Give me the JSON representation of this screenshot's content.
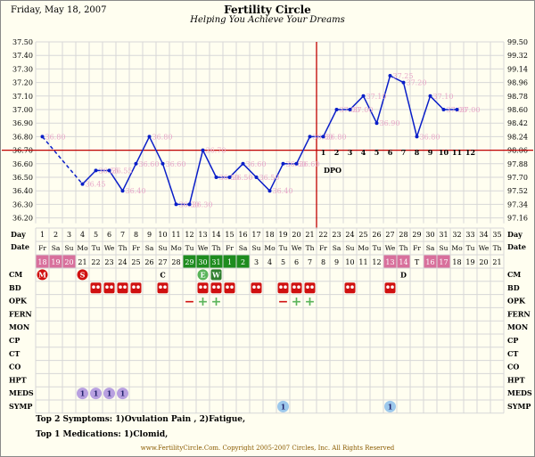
{
  "header": {
    "date": "Friday, May 18, 2007",
    "title": "Fertility Circle",
    "subtitle": "Helping You Achieve Your Dreams"
  },
  "chart_data": {
    "type": "line",
    "ylim_c": [
      36.1,
      37.5
    ],
    "y_ticks_c": [
      "37.50",
      "37.40",
      "37.30",
      "37.20",
      "37.10",
      "37.00",
      "36.90",
      "36.80",
      "36.70",
      "36.60",
      "36.50",
      "36.40",
      "36.30",
      "36.20"
    ],
    "y_ticks_f": [
      "99.50",
      "99.32",
      "99.14",
      "98.96",
      "98.78",
      "98.60",
      "98.42",
      "98.24",
      "98.06",
      "97.88",
      "97.70",
      "97.52",
      "97.34",
      "97.16"
    ],
    "days": [
      1,
      2,
      3,
      4,
      5,
      6,
      7,
      8,
      9,
      10,
      11,
      12,
      13,
      14,
      15,
      16,
      17,
      18,
      19,
      20,
      21,
      22,
      23,
      24,
      25,
      26,
      27,
      28,
      29,
      30,
      31,
      32,
      33,
      34,
      35
    ],
    "temps": [
      36.8,
      null,
      null,
      36.45,
      36.55,
      36.55,
      36.4,
      36.6,
      36.8,
      36.6,
      36.3,
      36.3,
      36.7,
      36.5,
      36.5,
      36.6,
      36.5,
      36.4,
      36.6,
      36.6,
      36.8,
      36.8,
      37.0,
      37.0,
      37.1,
      36.9,
      37.25,
      37.2,
      36.8,
      37.1,
      37.0,
      37.0,
      null,
      null,
      null
    ],
    "temp_labels": [
      "36.80",
      "36.45",
      "36.55",
      "36.55",
      "36.40",
      "36.60",
      "36.80",
      "36.60",
      "36.30",
      "36.30",
      "36.70",
      "36.50",
      "36.50",
      "36.60",
      "36.50",
      "36.40",
      "36.60",
      "36.60",
      "36.80",
      "36.80",
      "37.00",
      "37.00",
      "37.10",
      "36.90",
      "37.25",
      "37.20",
      "36.80",
      "37.10",
      "37.00",
      "37.00"
    ],
    "coverline_c": 36.7,
    "ovulation_day": 21,
    "dpo_label": "DPO",
    "dpo": [
      "1",
      "2",
      "3",
      "4",
      "5",
      "6",
      "7",
      "8",
      "9",
      "10",
      "11",
      "12"
    ],
    "colors": {
      "line": "#0a1ec8",
      "coverline": "#c00000",
      "grid": "#d7d7d7",
      "label": "#e8a8c8",
      "pink": "#d8709c",
      "green": "#1e8c1e",
      "opk": "#5ab45a",
      "red": "#d01010"
    }
  },
  "rows": {
    "day_label": "Day",
    "date_label": "Date",
    "weekdays": [
      "Fr",
      "Sa",
      "Su",
      "Mo",
      "Tu",
      "We",
      "Th",
      "Fr",
      "Sa",
      "Su",
      "Mo",
      "Tu",
      "We",
      "Th",
      "Fr",
      "Sa",
      "Su",
      "Mo",
      "Tu",
      "We",
      "Th",
      "Fr",
      "Sa",
      "Su",
      "Mo",
      "Tu",
      "We",
      "Th",
      "Fr",
      "Sa",
      "Su",
      "Mo",
      "Tu",
      "We",
      "Th"
    ],
    "dates": [
      "18",
      "19",
      "20",
      "21",
      "22",
      "23",
      "24",
      "25",
      "26",
      "27",
      "28",
      "29",
      "30",
      "31",
      "1",
      "2",
      "3",
      "4",
      "5",
      "6",
      "7",
      "8",
      "9",
      "10",
      "11",
      "12",
      "13",
      "14",
      "T",
      "16",
      "17",
      "18",
      "19",
      "20",
      "21"
    ],
    "date_style": [
      "p",
      "p",
      "p",
      "",
      "",
      "",
      "",
      "",
      "",
      "",
      "",
      "g",
      "g",
      "g",
      "g",
      "g",
      "",
      "",
      "",
      "",
      "",
      "",
      "",
      "",
      "",
      "",
      "p",
      "p",
      "",
      "p",
      "p",
      "",
      "",
      "",
      ""
    ],
    "labels": [
      "CM",
      "BD",
      "OPK",
      "FERN",
      "MON",
      "CP",
      "CT",
      "CO",
      "HPT",
      "MEDS",
      "SYMP"
    ],
    "cm_marks": [
      {
        "day": 1,
        "text": "M",
        "kind": "red"
      },
      {
        "day": 4,
        "text": "S",
        "kind": "red"
      },
      {
        "day": 10,
        "text": "C",
        "kind": "plain"
      },
      {
        "day": 13,
        "text": "E",
        "kind": "green"
      },
      {
        "day": 14,
        "text": "W",
        "kind": "greenbox"
      },
      {
        "day": 28,
        "text": "D",
        "kind": "plain"
      }
    ],
    "bd_days": [
      5,
      6,
      7,
      8,
      10,
      13,
      14,
      15,
      17,
      19,
      20,
      21,
      24,
      27
    ],
    "opk": [
      {
        "day": 12,
        "text": "−",
        "kind": "neg"
      },
      {
        "day": 13,
        "text": "+",
        "kind": "pos"
      },
      {
        "day": 14,
        "text": "+",
        "kind": "pos"
      },
      {
        "day": 19,
        "text": "−",
        "kind": "neg"
      },
      {
        "day": 20,
        "text": "+",
        "kind": "pos"
      },
      {
        "day": 21,
        "text": "+",
        "kind": "pos"
      }
    ],
    "meds": [
      {
        "day": 4,
        "text": "1"
      },
      {
        "day": 5,
        "text": "1"
      },
      {
        "day": 6,
        "text": "1"
      },
      {
        "day": 7,
        "text": "1"
      }
    ],
    "symp": [
      {
        "day": 19,
        "text": "1"
      },
      {
        "day": 27,
        "text": "1"
      }
    ]
  },
  "footer": {
    "top_symptoms": "Top 2 Symptoms: 1)Ovulation Pain , 2)Fatigue,",
    "top_medications": "Top 1 Medications: 1)Clomid,",
    "copyright": "www.FertilityCircle.Com. Copyright 2005-2007 Circles, Inc. All Rights Reserved"
  }
}
